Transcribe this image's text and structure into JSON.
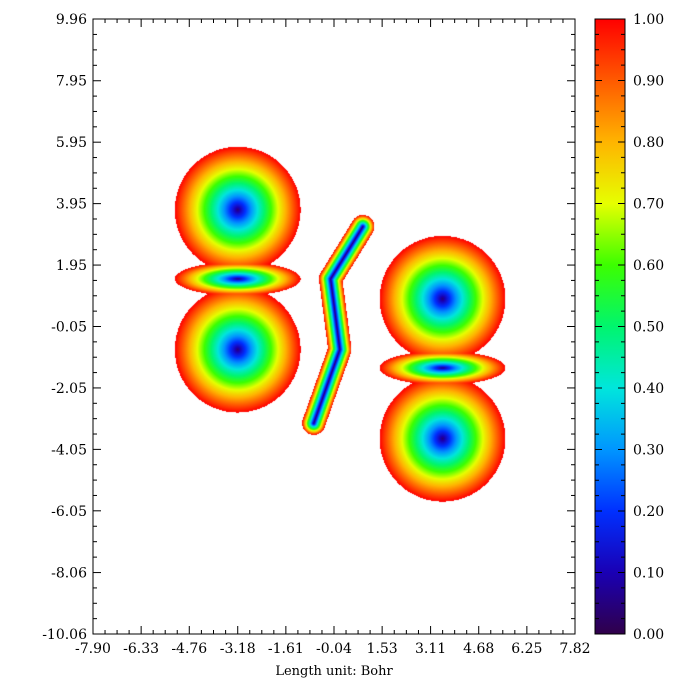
{
  "chart_data": {
    "type": "heatmap",
    "title": "",
    "xlabel": "Length unit: Bohr",
    "ylabel": "",
    "xlim": [
      -7.9,
      7.82
    ],
    "ylim": [
      -10.06,
      9.96
    ],
    "x_ticks": [
      "-7.90",
      "-6.33",
      "-4.76",
      "-3.18",
      "-1.61",
      "-0.04",
      "1.53",
      "3.11",
      "4.68",
      "6.25",
      "7.82"
    ],
    "x_tick_values": [
      -7.9,
      -6.33,
      -4.76,
      -3.18,
      -1.61,
      -0.04,
      1.53,
      3.11,
      4.68,
      6.25,
      7.82
    ],
    "y_ticks": [
      "9.96",
      "7.95",
      "5.95",
      "3.95",
      "1.95",
      "-0.05",
      "-2.05",
      "-4.05",
      "-6.05",
      "-8.06",
      "-10.06"
    ],
    "y_tick_values": [
      9.96,
      7.95,
      5.95,
      3.95,
      1.95,
      -0.05,
      -2.05,
      -4.05,
      -6.05,
      -8.06,
      -10.06
    ],
    "colorbar": {
      "min": 0.0,
      "max": 1.0,
      "ticks": [
        "1.00",
        "0.90",
        "0.80",
        "0.70",
        "0.60",
        "0.50",
        "0.40",
        "0.30",
        "0.20",
        "0.10",
        "0.00"
      ],
      "tick_values": [
        1.0,
        0.9,
        0.8,
        0.7,
        0.6,
        0.5,
        0.4,
        0.3,
        0.2,
        0.1,
        0.0
      ],
      "colormap": "rainbow (purple-blue-cyan-green-yellow-orange-red)",
      "colors": [
        "#30004a",
        "#0000ff",
        "#00bfff",
        "#00ff80",
        "#ffff00",
        "#ff8000",
        "#ff0000"
      ]
    },
    "cutoff_value": 1.0,
    "background_color": "#ffffff",
    "features": [
      {
        "kind": "atom-lobe",
        "x": -3.18,
        "y": 3.75,
        "min_value": 0.05
      },
      {
        "kind": "belt",
        "x": -3.18,
        "y": 1.5,
        "min_value": 0.15
      },
      {
        "kind": "atom-lobe",
        "x": -3.18,
        "y": -0.8,
        "min_value": 0.05
      },
      {
        "kind": "bond",
        "x": -0.2,
        "y": 0.0,
        "min_value": 0.15
      },
      {
        "kind": "atom-lobe",
        "x": 3.5,
        "y": 0.85,
        "min_value": 0.05
      },
      {
        "kind": "belt",
        "x": 3.5,
        "y": -1.4,
        "min_value": 0.15
      },
      {
        "kind": "atom-lobe",
        "x": 3.5,
        "y": -3.7,
        "min_value": 0.05
      }
    ]
  }
}
